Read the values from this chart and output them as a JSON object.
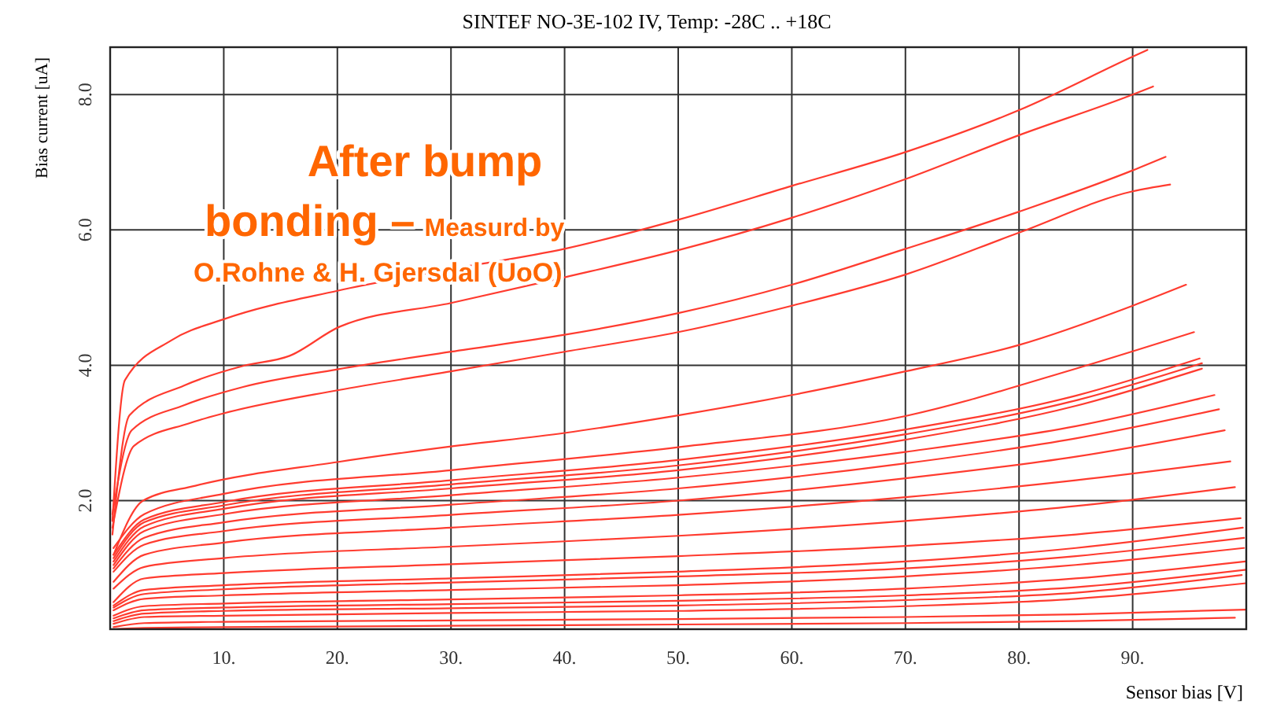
{
  "chart_data": {
    "type": "line",
    "title": "SINTEF NO-3E-102 IV, Temp: -28C .. +18C",
    "xlabel": "Sensor bias [V]",
    "ylabel": "Bias current [uA]",
    "annotations": [
      "After bump bonding –",
      "Measurd by O.Rohne & H. Gjersdal (UoO)"
    ],
    "xlim": [
      0,
      100
    ],
    "ylim": [
      0.1,
      8.7
    ],
    "xticks": [
      {
        "value": 10,
        "label": "10."
      },
      {
        "value": 20,
        "label": "20."
      },
      {
        "value": 30,
        "label": "30."
      },
      {
        "value": 40,
        "label": "40."
      },
      {
        "value": 50,
        "label": "50."
      },
      {
        "value": 60,
        "label": "60."
      },
      {
        "value": 70,
        "label": "70."
      },
      {
        "value": 80,
        "label": "80."
      },
      {
        "value": 90,
        "label": "90."
      }
    ],
    "yticks": [
      {
        "value": 2,
        "label": "2.0"
      },
      {
        "value": 4,
        "label": "4.0"
      },
      {
        "value": 6,
        "label": "6.0"
      },
      {
        "value": 8,
        "label": "8.0"
      }
    ],
    "grid": true,
    "series": [
      {
        "color": "#ff3b2f",
        "x": [
          0.2,
          1.3,
          5.4,
          10,
          20,
          30,
          40,
          50,
          60,
          70,
          80,
          90,
          91.3
        ],
        "values": [
          1.7,
          3.78,
          4.37,
          4.68,
          5.1,
          5.42,
          5.72,
          6.15,
          6.65,
          7.15,
          7.77,
          8.56,
          8.66
        ]
      },
      {
        "color": "#ff3b2f",
        "x": [
          0.2,
          1.7,
          6.5,
          11.7,
          15.8,
          20.2,
          30,
          40,
          50,
          60,
          70,
          80,
          90,
          91.8
        ],
        "values": [
          1.5,
          3.26,
          3.7,
          3.99,
          4.14,
          4.57,
          4.92,
          5.3,
          5.7,
          6.18,
          6.75,
          7.4,
          8.0,
          8.12
        ]
      },
      {
        "color": "#ff3b2f",
        "x": [
          0.2,
          1.9,
          6.5,
          11.7,
          20,
          30,
          40,
          50,
          60,
          70,
          80,
          90,
          92.9
        ],
        "values": [
          1.8,
          3.04,
          3.41,
          3.68,
          3.94,
          4.2,
          4.45,
          4.77,
          5.19,
          5.72,
          6.27,
          6.88,
          7.08
        ]
      },
      {
        "color": "#ff3b2f",
        "x": [
          0.2,
          2.1,
          6.9,
          10,
          20,
          30,
          40,
          50,
          60,
          70,
          80,
          90,
          93.3
        ],
        "values": [
          1.6,
          2.81,
          3.14,
          3.29,
          3.63,
          3.91,
          4.2,
          4.49,
          4.88,
          5.34,
          5.96,
          6.57,
          6.67
        ]
      },
      {
        "color": "#ff3b2f",
        "x": [
          0.3,
          2.9,
          7.5,
          20,
          30,
          40,
          50,
          60,
          70,
          80,
          90,
          94.7
        ],
        "values": [
          1.2,
          2.0,
          2.22,
          2.57,
          2.8,
          3.0,
          3.26,
          3.56,
          3.91,
          4.3,
          4.88,
          5.19
        ]
      },
      {
        "color": "#ff3b2f",
        "x": [
          0.3,
          3,
          10,
          30,
          50,
          70,
          85,
          95.4
        ],
        "values": [
          1.3,
          1.8,
          2.1,
          2.45,
          2.79,
          3.25,
          3.95,
          4.49
        ]
      },
      {
        "color": "#ff3b2f",
        "x": [
          0.3,
          3,
          10,
          30,
          50,
          70,
          85,
          95.9
        ],
        "values": [
          1.2,
          1.72,
          1.98,
          2.3,
          2.6,
          3.05,
          3.55,
          4.1
        ]
      },
      {
        "color": "#ff3b2f",
        "x": [
          0.3,
          3,
          10,
          30,
          50,
          70,
          85,
          96.1
        ],
        "values": [
          1.15,
          1.68,
          1.93,
          2.24,
          2.52,
          2.98,
          3.48,
          4.03
        ]
      },
      {
        "color": "#ff3b2f",
        "x": [
          0.3,
          3,
          10,
          30,
          50,
          70,
          85,
          96.1
        ],
        "values": [
          1.1,
          1.62,
          1.88,
          2.18,
          2.45,
          2.9,
          3.4,
          3.95
        ]
      },
      {
        "color": "#ff3b2f",
        "x": [
          0.3,
          3,
          10,
          30,
          50,
          70,
          85,
          97.2
        ],
        "values": [
          1.05,
          1.55,
          1.8,
          2.08,
          2.34,
          2.72,
          3.1,
          3.56
        ]
      },
      {
        "color": "#ff3b2f",
        "x": [
          0.3,
          3,
          10,
          30,
          50,
          70,
          85,
          97.6
        ],
        "values": [
          1.0,
          1.45,
          1.68,
          1.94,
          2.18,
          2.55,
          2.92,
          3.35
        ]
      },
      {
        "color": "#ff3b2f",
        "x": [
          0.3,
          3,
          10,
          30,
          50,
          70,
          85,
          98.1
        ],
        "values": [
          0.95,
          1.35,
          1.55,
          1.79,
          2.0,
          2.33,
          2.65,
          3.04
        ]
      },
      {
        "color": "#ff3b2f",
        "x": [
          0.3,
          3,
          10,
          30,
          50,
          70,
          85,
          98.6
        ],
        "values": [
          0.8,
          1.2,
          1.38,
          1.6,
          1.79,
          2.05,
          2.3,
          2.58
        ]
      },
      {
        "color": "#ff3b2f",
        "x": [
          0.3,
          3,
          10,
          30,
          50,
          70,
          85,
          99.0
        ],
        "values": [
          0.7,
          1.02,
          1.15,
          1.32,
          1.48,
          1.7,
          1.92,
          2.2
        ]
      },
      {
        "color": "#ff3b2f",
        "x": [
          0.3,
          3,
          10,
          30,
          50,
          70,
          85,
          99.5
        ],
        "values": [
          0.5,
          0.85,
          0.93,
          1.06,
          1.18,
          1.33,
          1.5,
          1.74
        ]
      },
      {
        "color": "#ff3b2f",
        "x": [
          0.3,
          3,
          10,
          30,
          50,
          70,
          85,
          99.7
        ],
        "values": [
          0.45,
          0.68,
          0.75,
          0.85,
          0.95,
          1.1,
          1.3,
          1.6
        ]
      },
      {
        "color": "#ff3b2f",
        "x": [
          0.3,
          3,
          10,
          30,
          50,
          70,
          85,
          99.8
        ],
        "values": [
          0.42,
          0.62,
          0.69,
          0.79,
          0.88,
          1.0,
          1.18,
          1.45
        ]
      },
      {
        "color": "#ff3b2f",
        "x": [
          0.3,
          3,
          10,
          30,
          50,
          70,
          85,
          99.8
        ],
        "values": [
          0.38,
          0.55,
          0.6,
          0.68,
          0.75,
          0.88,
          1.05,
          1.3
        ]
      },
      {
        "color": "#ff3b2f",
        "x": [
          0.3,
          3,
          10,
          30,
          50,
          70,
          85,
          99.9
        ],
        "values": [
          0.3,
          0.44,
          0.48,
          0.54,
          0.6,
          0.7,
          0.85,
          1.1
        ]
      },
      {
        "color": "#ff3b2f",
        "x": [
          0.3,
          3,
          10,
          30,
          50,
          70,
          85,
          100
        ],
        "values": [
          0.26,
          0.38,
          0.42,
          0.47,
          0.52,
          0.6,
          0.72,
          0.98
        ]
      },
      {
        "color": "#ff3b2f",
        "x": [
          0.3,
          3,
          10,
          30,
          50,
          70,
          85,
          99.6
        ],
        "values": [
          0.22,
          0.33,
          0.37,
          0.41,
          0.45,
          0.53,
          0.64,
          0.9
        ]
      },
      {
        "color": "#ff3b2f",
        "x": [
          0.3,
          3,
          10,
          30,
          50,
          70,
          85,
          100
        ],
        "values": [
          0.18,
          0.28,
          0.3,
          0.34,
          0.37,
          0.44,
          0.55,
          0.78
        ]
      },
      {
        "color": "#ff3b2f",
        "x": [
          0.3,
          3,
          10,
          30,
          50,
          70,
          85,
          100
        ],
        "values": [
          0.13,
          0.19,
          0.21,
          0.23,
          0.25,
          0.28,
          0.32,
          0.39
        ]
      },
      {
        "color": "#ff3b2f",
        "x": [
          0.3,
          3,
          10,
          30,
          50,
          70,
          85,
          99
        ],
        "values": [
          0.1,
          0.12,
          0.13,
          0.15,
          0.17,
          0.19,
          0.22,
          0.27
        ]
      }
    ]
  }
}
